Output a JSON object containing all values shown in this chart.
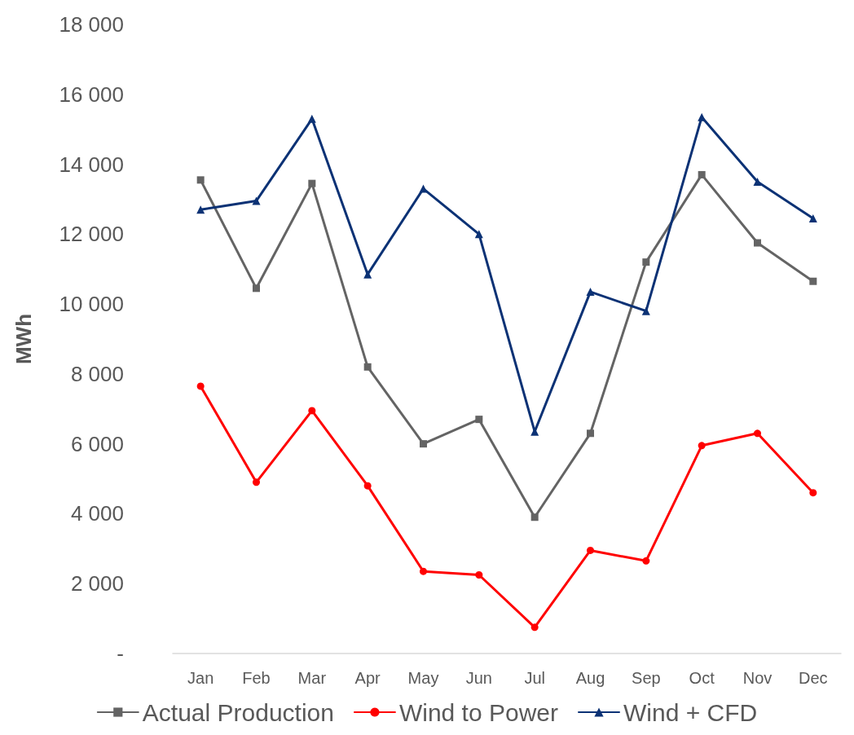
{
  "chart_data": {
    "type": "line",
    "ylabel": "MWh",
    "categories": [
      "Jan",
      "Feb",
      "Mar",
      "Apr",
      "May",
      "Jun",
      "Jul",
      "Aug",
      "Sep",
      "Oct",
      "Nov",
      "Dec"
    ],
    "series": [
      {
        "name": "Actual Production",
        "color": "#646464",
        "marker": "square",
        "values": [
          13550,
          10450,
          13450,
          8200,
          6000,
          6700,
          3900,
          6300,
          11200,
          13700,
          11750,
          10650
        ]
      },
      {
        "name": "Wind to Power",
        "color": "#ff0000",
        "marker": "circle",
        "values": [
          7650,
          4900,
          6950,
          4800,
          2350,
          2250,
          750,
          2950,
          2650,
          5950,
          6300,
          4600
        ]
      },
      {
        "name": "Wind + CFD",
        "color": "#0c3275",
        "marker": "triangle",
        "values": [
          12700,
          12950,
          15300,
          10850,
          13300,
          12000,
          6350,
          10350,
          9800,
          15350,
          13500,
          12450
        ]
      }
    ],
    "ylim": [
      0,
      18000
    ],
    "yticks": [
      {
        "value": 0,
        "label": "-"
      },
      {
        "value": 2000,
        "label": "2 000"
      },
      {
        "value": 4000,
        "label": "4 000"
      },
      {
        "value": 6000,
        "label": "6 000"
      },
      {
        "value": 8000,
        "label": "8 000"
      },
      {
        "value": 10000,
        "label": "10 000"
      },
      {
        "value": 12000,
        "label": "12 000"
      },
      {
        "value": 14000,
        "label": "14 000"
      },
      {
        "value": 16000,
        "label": "16 000"
      },
      {
        "value": 18000,
        "label": "18 000"
      }
    ],
    "grid": false,
    "legend": "bottom",
    "line_style": "solid"
  }
}
